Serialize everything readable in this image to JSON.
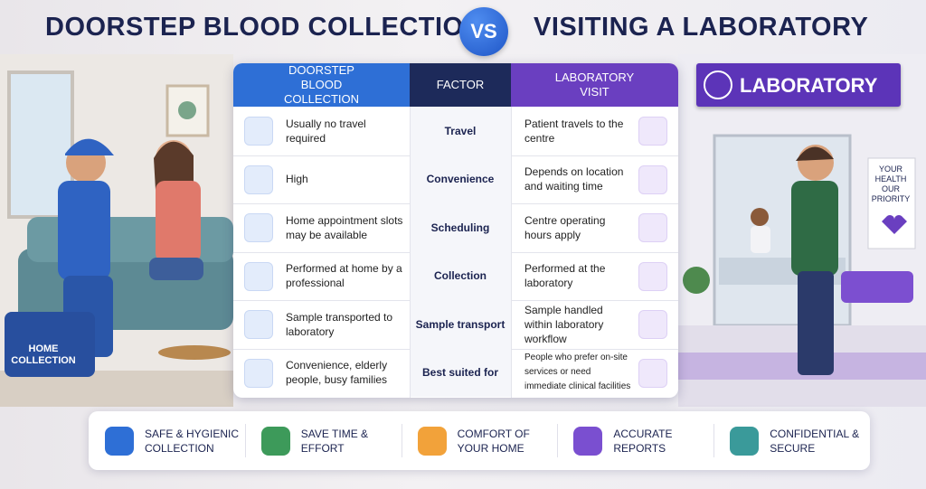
{
  "header": {
    "left": "DOORSTEP BLOOD COLLECTION",
    "vs": "VS",
    "right": "VISITING A LABORATORY"
  },
  "scene": {
    "bag_label": "HOME COLLECTION",
    "lab_sign": "LABORATORY",
    "poster": "YOUR HEALTH OUR PRIORITY"
  },
  "table": {
    "columns": [
      "DOORSTEP BLOOD COLLECTION",
      "FACTOR",
      "LABORATORY VISIT"
    ],
    "rows": [
      [
        "Usually no travel required",
        "Travel",
        "Patient travels to the centre"
      ],
      [
        "High",
        "Convenience",
        "Depends on location and waiting time"
      ],
      [
        "Home appointment slots may be available",
        "Scheduling",
        "Centre operating hours apply"
      ],
      [
        "Performed at home by a professional",
        "Collection",
        "Performed at the laboratory"
      ],
      [
        "Sample transported to laboratory",
        "Sample transport",
        "Sample handled within laboratory workflow"
      ],
      [
        "Convenience, elderly people, busy families",
        "Best suited for",
        "People who prefer on-site services or need immediate clinical facilities"
      ]
    ]
  },
  "features": [
    "SAFE & HYGIENIC COLLECTION",
    "SAVE TIME & EFFORT",
    "COMFORT OF YOUR HOME",
    "ACCURATE REPORTS",
    "CONFIDENTIAL & SECURE"
  ]
}
